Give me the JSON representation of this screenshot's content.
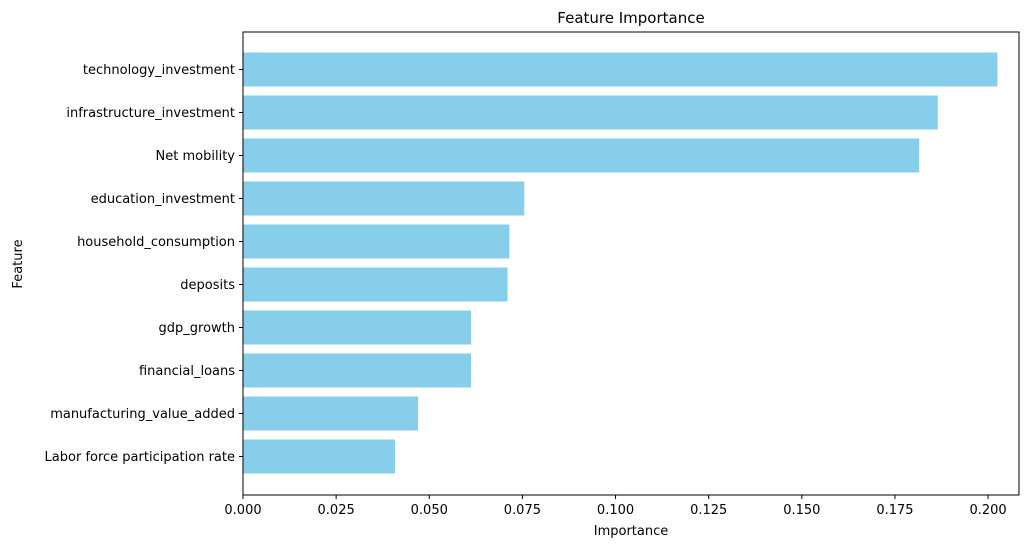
{
  "chart_data": {
    "type": "bar",
    "orientation": "horizontal",
    "title": "Feature Importance",
    "xlabel": "Importance",
    "ylabel": "Feature",
    "categories": [
      "technology_investment",
      "infrastructure_investment",
      "Net mobility",
      "education_investment",
      "household_consumption",
      "deposits",
      "gdp_growth",
      "financial_loans",
      "manufacturing_value_added",
      "Labor force participation rate"
    ],
    "values": [
      0.2025,
      0.1865,
      0.1815,
      0.0755,
      0.0715,
      0.071,
      0.0612,
      0.0612,
      0.047,
      0.0408
    ],
    "xlim": [
      0,
      0.2083
    ],
    "xticks": [
      "0.000",
      "0.025",
      "0.050",
      "0.075",
      "0.100",
      "0.125",
      "0.150",
      "0.175",
      "0.200"
    ],
    "xtick_values": [
      0,
      0.025,
      0.05,
      0.075,
      0.1,
      0.125,
      0.15,
      0.175,
      0.2
    ],
    "bar_color": "#87ceeb",
    "grid": false,
    "legend": "none"
  }
}
